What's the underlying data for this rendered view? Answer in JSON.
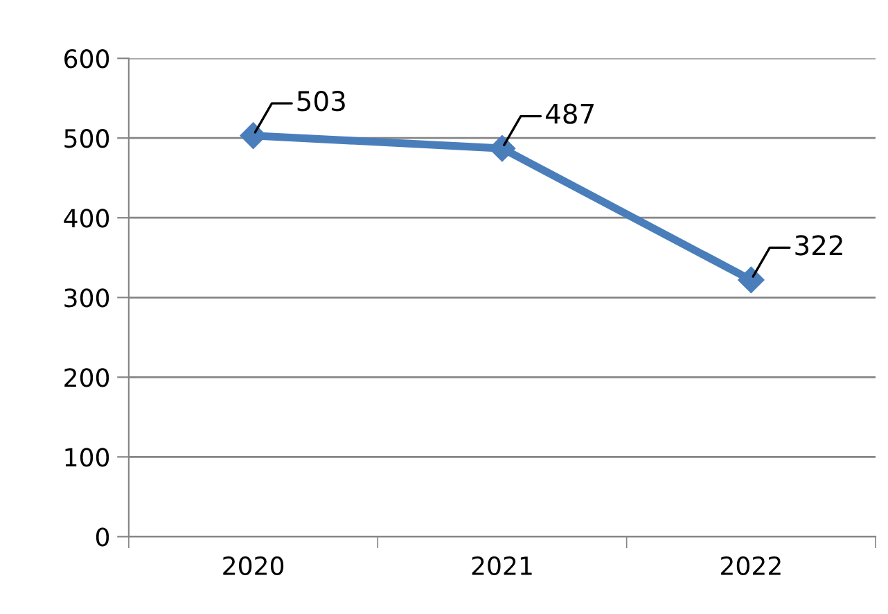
{
  "chart_data": {
    "type": "line",
    "categories": [
      "2020",
      "2021",
      "2022"
    ],
    "series": [
      {
        "color": "#4a7ebb",
        "values": [
          503,
          487,
          322
        ]
      }
    ],
    "ylim": [
      0,
      600
    ],
    "yticks": [
      0,
      100,
      200,
      300,
      400,
      500,
      600
    ],
    "grid": "y",
    "marker": "diamond",
    "line_style": "solid",
    "data_labels": true
  }
}
